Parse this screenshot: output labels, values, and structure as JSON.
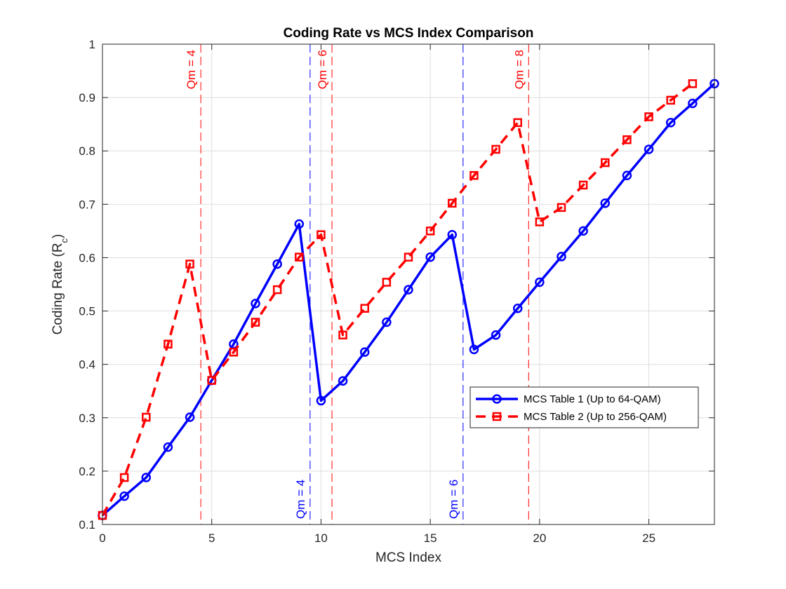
{
  "chart_data": {
    "type": "line",
    "title": "Coding Rate vs MCS Index Comparison",
    "xlabel": "MCS Index",
    "ylabel": "Coding Rate (R",
    "ylabel_sub": "c",
    "ylabel_close": ")",
    "xlim": [
      0,
      28
    ],
    "ylim": [
      0.1,
      1
    ],
    "xticks": [
      0,
      5,
      10,
      15,
      20,
      25
    ],
    "yticks": [
      0.1,
      0.2,
      0.3,
      0.4,
      0.5,
      0.6,
      0.7,
      0.8,
      0.9,
      1
    ],
    "ytick_labels": [
      "0.1",
      "0.2",
      "0.3",
      "0.4",
      "0.5",
      "0.6",
      "0.7",
      "0.8",
      "0.9",
      "1"
    ],
    "grid": true,
    "legend_position": "lower-right",
    "series": [
      {
        "name": "MCS Table 1 (Up to 64-QAM)",
        "color": "#0000ff",
        "line_style": "solid",
        "marker": "circle",
        "x": [
          0,
          1,
          2,
          3,
          4,
          5,
          6,
          7,
          8,
          9,
          10,
          11,
          12,
          13,
          14,
          15,
          16,
          17,
          18,
          19,
          20,
          21,
          22,
          23,
          24,
          25,
          26,
          27,
          28
        ],
        "y": [
          0.117,
          0.153,
          0.188,
          0.245,
          0.301,
          0.37,
          0.438,
          0.514,
          0.588,
          0.663,
          0.332,
          0.369,
          0.423,
          0.479,
          0.54,
          0.601,
          0.643,
          0.428,
          0.455,
          0.505,
          0.554,
          0.602,
          0.65,
          0.702,
          0.754,
          0.803,
          0.853,
          0.889,
          0.926
        ]
      },
      {
        "name": "MCS Table 2 (Up to 256-QAM)",
        "color": "#ff0000",
        "line_style": "dashed",
        "marker": "square",
        "x": [
          0,
          1,
          2,
          3,
          4,
          5,
          6,
          7,
          8,
          9,
          10,
          11,
          12,
          13,
          14,
          15,
          16,
          17,
          18,
          19,
          20,
          21,
          22,
          23,
          24,
          25,
          26,
          27
        ],
        "y": [
          0.117,
          0.188,
          0.301,
          0.438,
          0.588,
          0.37,
          0.423,
          0.479,
          0.54,
          0.601,
          0.643,
          0.455,
          0.505,
          0.554,
          0.601,
          0.65,
          0.702,
          0.754,
          0.803,
          0.853,
          0.667,
          0.694,
          0.736,
          0.778,
          0.821,
          0.864,
          0.895,
          0.926
        ]
      }
    ],
    "annotations": [
      {
        "x": 4.5,
        "label": "Qm = 4",
        "color": "#ff0000",
        "placement": "top"
      },
      {
        "x": 10.5,
        "label": "Qm = 6",
        "color": "#ff0000",
        "placement": "top"
      },
      {
        "x": 19.5,
        "label": "Qm = 8",
        "color": "#ff0000",
        "placement": "top"
      },
      {
        "x": 9.5,
        "label": "Qm = 4",
        "color": "#0000ff",
        "placement": "bottom"
      },
      {
        "x": 16.5,
        "label": "Qm = 6",
        "color": "#0000ff",
        "placement": "bottom"
      }
    ]
  }
}
